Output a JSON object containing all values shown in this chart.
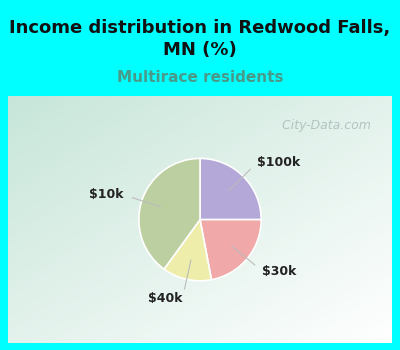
{
  "title": "Income distribution in Redwood Falls,\nMN (%)",
  "subtitle": "Multirace residents",
  "title_fontsize": 13,
  "subtitle_fontsize": 11,
  "title_color": "#111111",
  "subtitle_color": "#4a9a8a",
  "slices": [
    {
      "label": "$100k",
      "value": 25,
      "color": "#b3a8d8"
    },
    {
      "label": "$30k",
      "value": 22,
      "color": "#f0a8a8"
    },
    {
      "label": "$40k",
      "value": 13,
      "color": "#eeeeaa"
    },
    {
      "label": "$10k",
      "value": 40,
      "color": "#bccfa0"
    }
  ],
  "startangle": 90,
  "bg_cyan": "#00ffff",
  "chart_bg_colors": [
    "#c8e8d8",
    "#eaf8f4"
  ],
  "watermark": "  City-Data.com",
  "watermark_color": "#aabbbb",
  "watermark_fontsize": 9,
  "label_fontsize": 9,
  "label_color": "#222222",
  "line_color": "#bbbbbb"
}
